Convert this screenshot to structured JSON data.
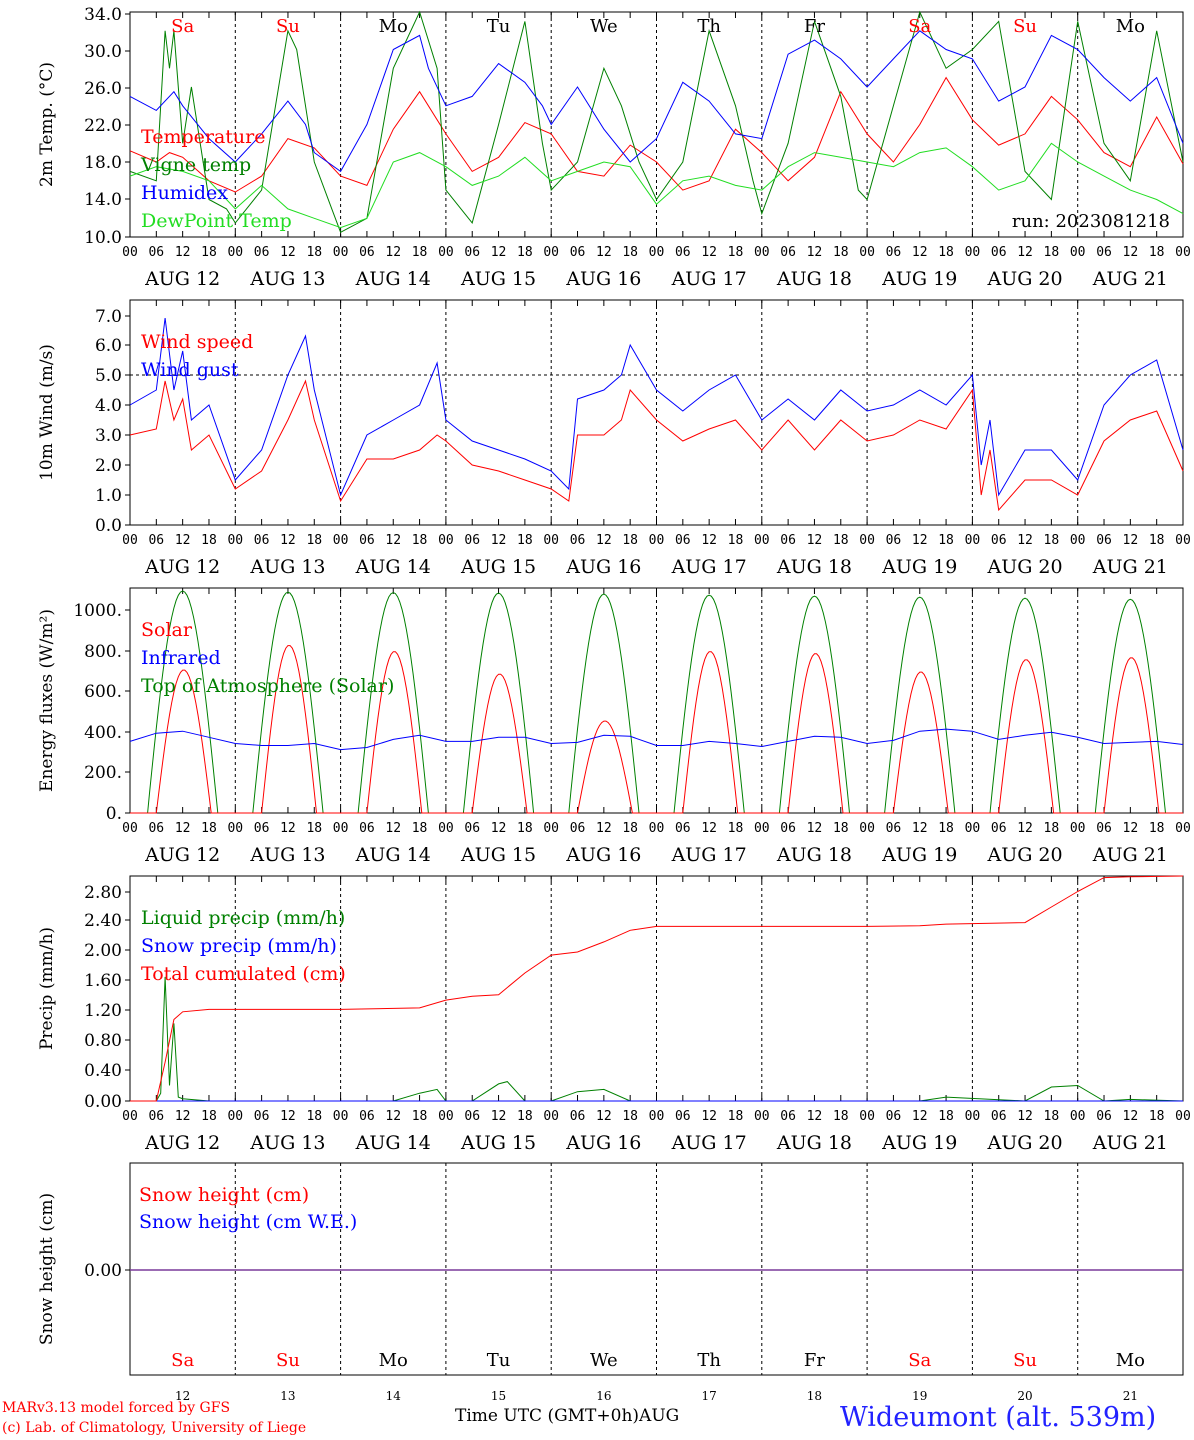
{
  "footer": {
    "model_line": "MARv3.13 model forced by GFS",
    "credit_line": "(c) Lab. of Climatology, University of Liege",
    "x_title": "Time UTC (GMT+0h)",
    "x_month": "AUG",
    "station": "Wideumont (alt. 539m)"
  },
  "colors": {
    "temperature": "#ff0000",
    "vigne": "#008000",
    "humidex": "#0000ff",
    "dewpoint": "#22dd22",
    "weekend": "#ff0000",
    "weekday": "#000000",
    "snow_line": "#7a3a9a"
  },
  "chart_data": [
    {
      "type": "line",
      "ylabel": "2m Temp. (°C)",
      "ylim": [
        10,
        34
      ],
      "yticks": [
        "10.0",
        "14.0",
        "18.0",
        "22.0",
        "26.0",
        "30.0",
        "34.0"
      ],
      "run_label": "run: 2023081218",
      "day_labels": [
        "Sa",
        "Su",
        "Mo",
        "Tu",
        "We",
        "Th",
        "Fr",
        "Sa",
        "Su",
        "Mo"
      ],
      "legend_placement": "left",
      "series": [
        {
          "name": "Temperature",
          "color": "#ff0000",
          "x_hours": [
            0,
            6,
            9,
            12,
            18,
            24,
            30,
            36,
            42,
            48,
            54,
            60,
            66,
            72,
            78,
            84,
            90,
            96,
            102,
            108,
            114,
            120,
            126,
            132,
            138,
            144,
            150,
            156,
            162,
            168,
            174,
            180,
            186,
            192,
            198,
            204,
            210,
            216,
            222,
            228,
            234,
            240
          ],
          "y": [
            19.2,
            18,
            19,
            18.5,
            16,
            14.8,
            16.5,
            20.5,
            19.5,
            16.5,
            15.5,
            21.5,
            25.5,
            21,
            17,
            18.5,
            22.2,
            21,
            17,
            16.5,
            19.8,
            18,
            15,
            16,
            21.5,
            19,
            16,
            18.5,
            25.5,
            21,
            18,
            22,
            27,
            22.5,
            19.8,
            21,
            25,
            22.5,
            19,
            17.5,
            22.8,
            17.8
          ]
        },
        {
          "name": "Vigne temp",
          "color": "#008000",
          "x_hours": [
            0,
            6,
            8,
            9,
            10,
            12,
            14,
            18,
            22,
            24,
            30,
            36,
            38,
            42,
            46,
            48,
            54,
            60,
            66,
            70,
            72,
            78,
            84,
            90,
            94,
            96,
            102,
            108,
            112,
            116,
            120,
            126,
            132,
            138,
            142,
            144,
            150,
            156,
            162,
            166,
            168,
            174,
            180,
            186,
            192,
            198,
            204,
            210,
            216,
            222,
            228,
            234,
            240
          ],
          "y": [
            17,
            16,
            32,
            28,
            32,
            20,
            26,
            14,
            13,
            11.5,
            15,
            32,
            30,
            18,
            13,
            10.5,
            12,
            28,
            34,
            28,
            15,
            11.5,
            22,
            33,
            20,
            15,
            18,
            28,
            24,
            18,
            14,
            18,
            32,
            24,
            16,
            12.5,
            20,
            33,
            25,
            15,
            14,
            24,
            34,
            28,
            30,
            33,
            17,
            14,
            33,
            20,
            16,
            32,
            18
          ]
        },
        {
          "name": "Humidex",
          "color": "#0000ff",
          "x_hours": [
            0,
            6,
            10,
            12,
            18,
            24,
            30,
            36,
            40,
            42,
            48,
            54,
            60,
            66,
            68,
            72,
            78,
            84,
            90,
            94,
            96,
            102,
            108,
            114,
            120,
            126,
            132,
            138,
            144,
            150,
            156,
            162,
            168,
            174,
            180,
            186,
            192,
            198,
            204,
            210,
            216,
            222,
            228,
            234,
            240
          ],
          "y": [
            25,
            23.5,
            25.5,
            24,
            20.5,
            18,
            21,
            24.5,
            22,
            19,
            17,
            22,
            30,
            31.5,
            28,
            24,
            25,
            28.5,
            26.5,
            24,
            22,
            26,
            21.5,
            18,
            20.5,
            26.5,
            24.5,
            21,
            20.5,
            29.5,
            31,
            29,
            26,
            29,
            32,
            30,
            29,
            24.5,
            26,
            31.5,
            30,
            27,
            24.5,
            27,
            20
          ]
        },
        {
          "name": "DewPoint Temp",
          "color": "#22dd22",
          "x_hours": [
            0,
            6,
            12,
            18,
            24,
            30,
            36,
            42,
            48,
            54,
            60,
            66,
            72,
            78,
            84,
            90,
            96,
            102,
            108,
            114,
            120,
            126,
            132,
            138,
            144,
            150,
            156,
            162,
            168,
            174,
            180,
            186,
            192,
            198,
            204,
            210,
            216,
            222,
            228,
            234,
            240
          ],
          "y": [
            16.5,
            17.5,
            17,
            16,
            13,
            15.5,
            13,
            12,
            11,
            12,
            18,
            19,
            17.5,
            15.5,
            16.5,
            18.5,
            16,
            17,
            18,
            17.5,
            13.5,
            16,
            16.5,
            15.5,
            15,
            17.5,
            19,
            18.5,
            18,
            17.5,
            19,
            19.5,
            17.5,
            15,
            16,
            20,
            18,
            16.5,
            15,
            14,
            12.5
          ]
        }
      ]
    },
    {
      "type": "line",
      "ylabel": "10m Wind (m/s)",
      "ylim": [
        0,
        7.5
      ],
      "yticks": [
        "0.0",
        "1.0",
        "2.0",
        "3.0",
        "4.0",
        "5.0",
        "6.0",
        "7.0"
      ],
      "dashed_reference": 5.0,
      "legend_placement": "left",
      "series": [
        {
          "name": "Wind speed",
          "color": "#ff0000",
          "x_hours": [
            0,
            6,
            8,
            10,
            12,
            14,
            18,
            24,
            30,
            36,
            40,
            42,
            48,
            54,
            60,
            66,
            70,
            72,
            78,
            84,
            90,
            96,
            100,
            102,
            108,
            112,
            114,
            120,
            126,
            132,
            138,
            144,
            150,
            156,
            162,
            168,
            174,
            180,
            186,
            192,
            194,
            196,
            198,
            204,
            210,
            216,
            222,
            228,
            234,
            240
          ],
          "y": [
            3,
            3.2,
            4.8,
            3.5,
            4.2,
            2.5,
            3,
            1.2,
            1.8,
            3.5,
            4.8,
            3.5,
            0.8,
            2.2,
            2.2,
            2.5,
            3,
            2.8,
            2,
            1.8,
            1.5,
            1.2,
            0.8,
            3,
            3,
            3.5,
            4.5,
            3.5,
            2.8,
            3.2,
            3.5,
            2.5,
            3.5,
            2.5,
            3.5,
            2.8,
            3,
            3.5,
            3.2,
            4.5,
            1,
            2.5,
            0.5,
            1.5,
            1.5,
            1,
            2.8,
            3.5,
            3.8,
            1.8
          ]
        },
        {
          "name": "Wind gust",
          "color": "#0000ff",
          "x_hours": [
            0,
            6,
            8,
            10,
            12,
            14,
            18,
            24,
            30,
            36,
            40,
            42,
            48,
            54,
            60,
            66,
            70,
            72,
            78,
            84,
            90,
            96,
            100,
            102,
            108,
            112,
            114,
            120,
            126,
            132,
            138,
            144,
            150,
            156,
            162,
            168,
            174,
            180,
            186,
            192,
            194,
            196,
            198,
            204,
            210,
            216,
            222,
            228,
            234,
            240
          ],
          "y": [
            4,
            4.5,
            6.9,
            4.5,
            5.8,
            3.5,
            4,
            1.5,
            2.5,
            5,
            6.3,
            4.5,
            1,
            3,
            3.5,
            4,
            5.4,
            3.5,
            2.8,
            2.5,
            2.2,
            1.8,
            1.2,
            4.2,
            4.5,
            5,
            6,
            4.5,
            3.8,
            4.5,
            5,
            3.5,
            4.2,
            3.5,
            4.5,
            3.8,
            4,
            4.5,
            4,
            5,
            2,
            3.5,
            1,
            2.5,
            2.5,
            1.5,
            4,
            5,
            5.5,
            2.5
          ]
        }
      ]
    },
    {
      "type": "line",
      "ylabel": "Energy fluxes (W/m²)",
      "ylim": [
        0,
        1100
      ],
      "yticks": [
        "0.",
        "200.",
        "400.",
        "600.",
        "800.",
        "1000."
      ],
      "legend_placement": "left",
      "series": [
        {
          "name": "Solar",
          "color": "#ff0000",
          "daily_peak": [
            700,
            820,
            790,
            680,
            450,
            790,
            780,
            690,
            750,
            760
          ]
        },
        {
          "name": "Infrared",
          "color": "#0000ff",
          "x_hours": [
            0,
            6,
            12,
            18,
            24,
            30,
            36,
            42,
            48,
            54,
            60,
            66,
            72,
            78,
            84,
            90,
            96,
            102,
            108,
            114,
            120,
            126,
            132,
            138,
            144,
            150,
            156,
            162,
            168,
            174,
            180,
            186,
            192,
            198,
            204,
            210,
            216,
            222,
            228,
            234,
            240
          ],
          "y": [
            350,
            390,
            400,
            370,
            340,
            330,
            330,
            340,
            310,
            320,
            360,
            380,
            350,
            350,
            370,
            370,
            340,
            345,
            380,
            375,
            330,
            330,
            350,
            340,
            325,
            350,
            375,
            370,
            340,
            355,
            400,
            410,
            400,
            360,
            380,
            395,
            370,
            340,
            345,
            350,
            335
          ]
        },
        {
          "name": "Top of Atmosphere (Solar)",
          "color": "#008000",
          "daily_peak": [
            1085,
            1080,
            1078,
            1075,
            1070,
            1065,
            1060,
            1055,
            1050,
            1045
          ]
        }
      ]
    },
    {
      "type": "line",
      "ylabel": "Precip (mm/h)",
      "ylim": [
        0,
        2.9
      ],
      "yticks": [
        "0.00",
        "0.40",
        "0.80",
        "1.20",
        "1.60",
        "2.00",
        "2.40",
        "2.80"
      ],
      "legend_placement": "left",
      "series": [
        {
          "name": "Liquid precip (mm/h)",
          "color": "#008000",
          "x_hours": [
            0,
            6,
            7,
            8,
            9,
            10,
            11,
            12,
            18,
            24,
            60,
            66,
            70,
            72,
            78,
            84,
            86,
            90,
            96,
            102,
            108,
            114,
            180,
            186,
            204,
            210,
            216,
            222,
            228,
            240
          ],
          "y": [
            0,
            0,
            0.1,
            1.6,
            0.2,
            1.0,
            0.05,
            0.03,
            0,
            0,
            0,
            0.1,
            0.15,
            0,
            0,
            0.22,
            0.25,
            0,
            0,
            0.12,
            0.15,
            0,
            0,
            0.05,
            0,
            0.18,
            0.2,
            0,
            0.02,
            0
          ]
        },
        {
          "name": "Snow precip (mm/h)",
          "color": "#0000ff",
          "x_hours": [
            0,
            240
          ],
          "y": [
            0,
            0
          ]
        },
        {
          "name": "Total cumulated (cm)",
          "color": "#ff0000",
          "x_hours": [
            0,
            6,
            8,
            10,
            12,
            18,
            24,
            48,
            66,
            72,
            78,
            84,
            90,
            96,
            102,
            108,
            114,
            120,
            126,
            144,
            168,
            180,
            186,
            204,
            210,
            216,
            222,
            228,
            240
          ],
          "y": [
            0,
            0,
            0.5,
            1.05,
            1.15,
            1.18,
            1.18,
            1.18,
            1.2,
            1.3,
            1.35,
            1.37,
            1.65,
            1.88,
            1.92,
            2.05,
            2.2,
            2.25,
            2.25,
            2.25,
            2.25,
            2.26,
            2.28,
            2.3,
            2.5,
            2.7,
            2.88,
            2.89,
            2.9
          ]
        }
      ]
    },
    {
      "type": "line",
      "ylabel": "Snow height (cm)",
      "yticks": [
        "0.00"
      ],
      "legend_placement": "left",
      "series": [
        {
          "name": "Snow height (cm)",
          "color": "#ff0000",
          "x_hours": [
            0,
            240
          ],
          "y": [
            0,
            0
          ]
        },
        {
          "name": "Snow height (cm W.E.)",
          "color": "#0000ff",
          "x_hours": [
            0,
            240
          ],
          "y": [
            0,
            0
          ]
        }
      ],
      "day_labels": [
        "Sa",
        "Su",
        "Mo",
        "Tu",
        "We",
        "Th",
        "Fr",
        "Sa",
        "Su",
        "Mo"
      ],
      "day_numbers": [
        "12",
        "13",
        "14",
        "15",
        "16",
        "17",
        "18",
        "19",
        "20",
        "21"
      ]
    }
  ],
  "x_axis": {
    "hour_ticks": [
      "00",
      "06",
      "12",
      "18"
    ],
    "final_tick": "00",
    "dates": [
      "AUG 12",
      "AUG 13",
      "AUG 14",
      "AUG 15",
      "AUG 16",
      "AUG 17",
      "AUG 18",
      "AUG 19",
      "AUG 20",
      "AUG 21"
    ],
    "weekend_days": [
      0,
      1,
      7,
      8
    ]
  }
}
